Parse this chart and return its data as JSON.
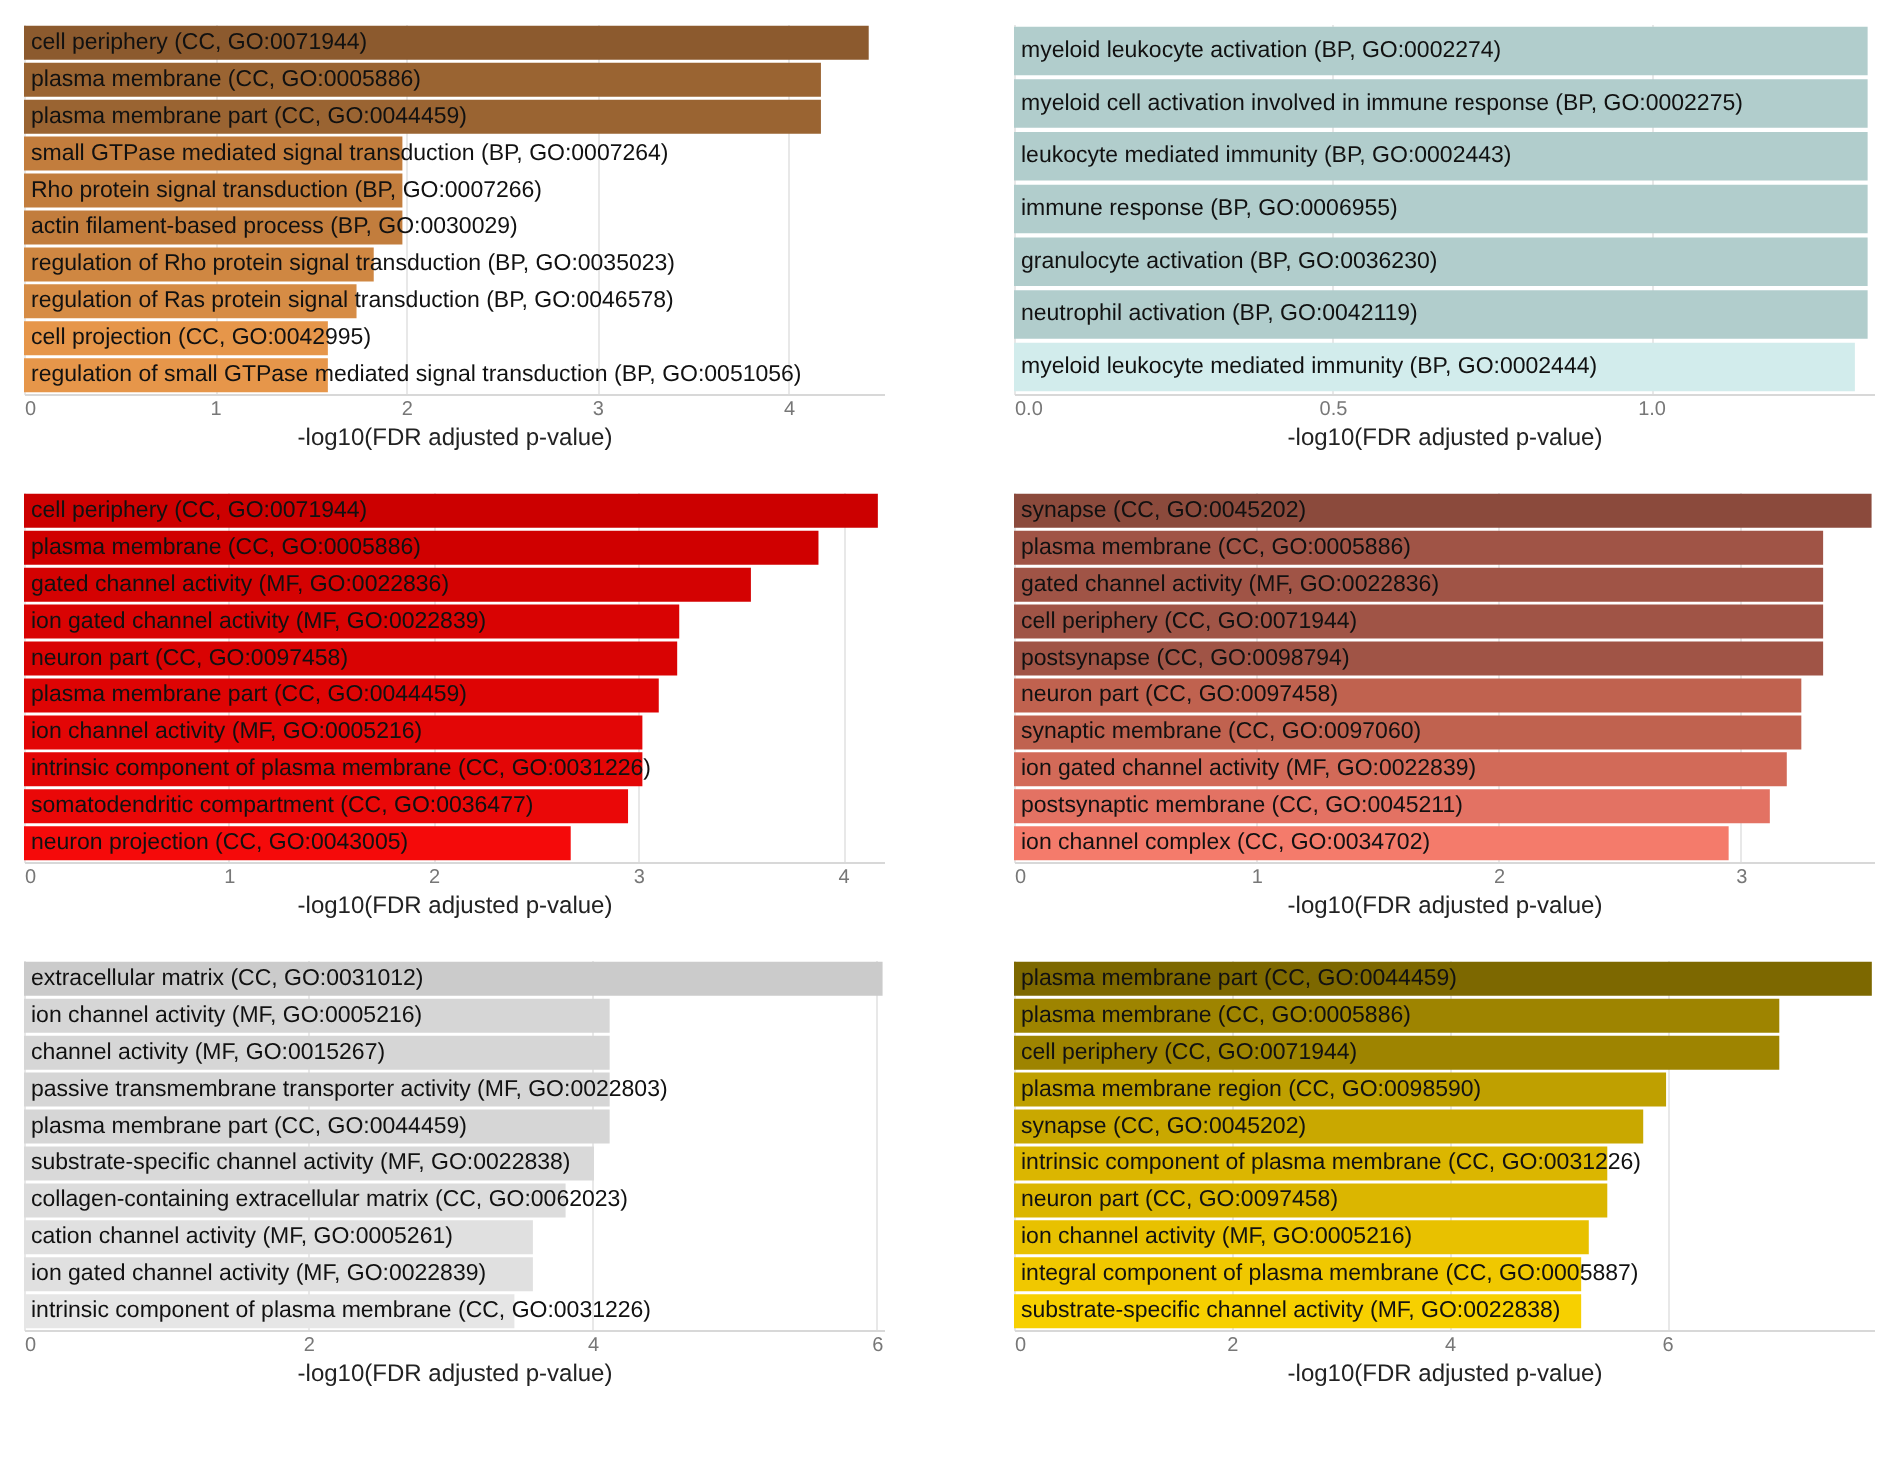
{
  "chart_data": [
    {
      "type": "bar",
      "orientation": "horizontal",
      "xlabel": "-log10(FDR adjusted p-value)",
      "grid": "x",
      "xlim": [
        0,
        4.5
      ],
      "xticks": [
        0,
        1,
        2,
        3,
        4
      ],
      "categories": [
        "cell periphery (CC, GO:0071944)",
        "plasma membrane (CC, GO:0005886)",
        "plasma membrane part (CC, GO:0044459)",
        "small GTPase mediated signal transduction (BP, GO:0007264)",
        "Rho protein signal transduction (BP, GO:0007266)",
        "actin filament-based process (BP, GO:0030029)",
        "regulation of Rho protein signal transduction (BP, GO:0035023)",
        "regulation of Ras protein signal transduction (BP, GO:0046578)",
        "cell projection (CC, GO:0042995)",
        "regulation of small GTPase mediated signal transduction (BP, GO:0051056)"
      ],
      "values": [
        4.42,
        4.17,
        4.17,
        1.98,
        1.98,
        1.98,
        1.83,
        1.74,
        1.59,
        1.59
      ],
      "colors": [
        "#8c5a2e",
        "#9a6432",
        "#9a6432",
        "#c27d3d",
        "#c27d3d",
        "#c27d3d",
        "#cf8742",
        "#d68c45",
        "#e6964a",
        "#e6964a"
      ]
    },
    {
      "type": "bar",
      "orientation": "horizontal",
      "xlabel": "-log10(FDR adjusted p-value)",
      "grid": "x",
      "xlim": [
        0,
        1.35
      ],
      "xticks": [
        {
          "value": 0,
          "label": "0.0"
        },
        0.5,
        {
          "value": 1,
          "label": "1.0"
        }
      ],
      "categories": [
        "myeloid leukocyte activation (BP, GO:0002274)",
        "myeloid cell activation involved in immune response (BP, GO:0002275)",
        "leukocyte mediated immunity (BP, GO:0002443)",
        "immune response (BP, GO:0006955)",
        "granulocyte activation (BP, GO:0036230)",
        "neutrophil activation (BP, GO:0042119)",
        "myeloid leukocyte mediated immunity (BP, GO:0002444)"
      ],
      "values": [
        1.34,
        1.34,
        1.34,
        1.34,
        1.34,
        1.34,
        1.32
      ],
      "colors": [
        "#b1cdcc",
        "#b1cdcc",
        "#b1cdcc",
        "#b1cdcc",
        "#b1cdcc",
        "#b1cdcc",
        "#d2ecec"
      ]
    },
    {
      "type": "bar",
      "orientation": "horizontal",
      "xlabel": "-log10(FDR adjusted p-value)",
      "grid": "x",
      "xlim": [
        0,
        4.2
      ],
      "xticks": [
        0,
        1,
        2,
        3,
        4
      ],
      "categories": [
        "cell periphery (CC, GO:0071944)",
        "plasma membrane (CC, GO:0005886)",
        "gated channel activity (MF, GO:0022836)",
        "ion gated channel activity (MF, GO:0022839)",
        "neuron part (CC, GO:0097458)",
        "plasma membrane part (CC, GO:0044459)",
        "ion channel activity (MF, GO:0005216)",
        "intrinsic component of plasma membrane (CC, GO:0031226)",
        "somatodendritic compartment (CC, GO:0036477)",
        "neuron projection (CC, GO:0043005)"
      ],
      "values": [
        4.17,
        3.88,
        3.55,
        3.2,
        3.19,
        3.1,
        3.02,
        3.02,
        2.95,
        2.67
      ],
      "colors": [
        "#cc0000",
        "#d00000",
        "#d40202",
        "#d90303",
        "#d90303",
        "#de0404",
        "#e30606",
        "#e30606",
        "#ea0808",
        "#f50a0a"
      ]
    },
    {
      "type": "bar",
      "orientation": "horizontal",
      "xlabel": "-log10(FDR adjusted p-value)",
      "grid": "x",
      "xlim": [
        0,
        3.55
      ],
      "xticks": [
        0,
        1,
        2,
        3
      ],
      "categories": [
        "synapse (CC, GO:0045202)",
        "plasma membrane (CC, GO:0005886)",
        "gated channel activity (MF, GO:0022836)",
        "cell periphery (CC, GO:0071944)",
        "postsynapse (CC, GO:0098794)",
        "neuron part (CC, GO:0097458)",
        "synaptic membrane (CC, GO:0097060)",
        "ion gated channel activity (MF, GO:0022839)",
        "postsynaptic membrane (CC, GO:0045211)",
        "ion channel complex (CC, GO:0034702)"
      ],
      "values": [
        3.54,
        3.34,
        3.34,
        3.34,
        3.34,
        3.25,
        3.25,
        3.19,
        3.12,
        2.95
      ],
      "colors": [
        "#8b4a3c",
        "#a05446",
        "#a05446",
        "#a05446",
        "#a05446",
        "#c0624f",
        "#c0624f",
        "#d26a58",
        "#e37263",
        "#f47b6b"
      ]
    },
    {
      "type": "bar",
      "orientation": "horizontal",
      "xlabel": "-log10(FDR adjusted p-value)",
      "grid": "x",
      "xlim": [
        0,
        6.05
      ],
      "xticks": [
        0,
        2,
        4,
        6
      ],
      "categories": [
        "extracellular matrix (CC, GO:0031012)",
        "ion channel activity (MF, GO:0005216)",
        "channel activity (MF, GO:0015267)",
        "passive transmembrane transporter activity (MF, GO:0022803)",
        "plasma membrane part (CC, GO:0044459)",
        "substrate-specific channel activity (MF, GO:0022838)",
        "collagen-containing extracellular matrix (CC, GO:0062023)",
        "cation channel activity (MF, GO:0005261)",
        "ion gated channel activity (MF, GO:0022839)",
        "intrinsic component of plasma membrane (CC, GO:0031226)"
      ],
      "values": [
        6.04,
        4.12,
        4.12,
        4.12,
        4.12,
        4.01,
        3.81,
        3.58,
        3.58,
        3.45
      ],
      "colors": [
        "#cbcbcb",
        "#d6d6d6",
        "#d6d6d6",
        "#d6d6d6",
        "#d6d6d6",
        "#d9d9d9",
        "#dcdcdc",
        "#e0e0e0",
        "#e0e0e0",
        "#e6e6e6"
      ]
    },
    {
      "type": "bar",
      "orientation": "horizontal",
      "xlabel": "-log10(FDR adjusted p-value)",
      "grid": "x",
      "xlim": [
        0,
        7.9
      ],
      "xticks": [
        0,
        2,
        4,
        6
      ],
      "categories": [
        "plasma membrane part (CC, GO:0044459)",
        "plasma membrane (CC, GO:0005886)",
        "cell periphery (CC, GO:0071944)",
        "plasma membrane region (CC, GO:0098590)",
        "synapse (CC, GO:0045202)",
        "intrinsic component of plasma membrane (CC, GO:0031226)",
        "neuron part (CC, GO:0097458)",
        "ion channel activity (MF, GO:0005216)",
        "integral component of plasma membrane (CC, GO:0005887)",
        "substrate-specific channel activity (MF, GO:0022838)"
      ],
      "values": [
        7.88,
        7.03,
        7.03,
        5.99,
        5.78,
        5.45,
        5.45,
        5.28,
        5.21,
        5.21
      ],
      "colors": [
        "#7d6800",
        "#9e8400",
        "#9e8400",
        "#bfa000",
        "#c9a800",
        "#dbb600",
        "#dbb600",
        "#e8c100",
        "#f0c800",
        "#f7d000"
      ]
    }
  ]
}
